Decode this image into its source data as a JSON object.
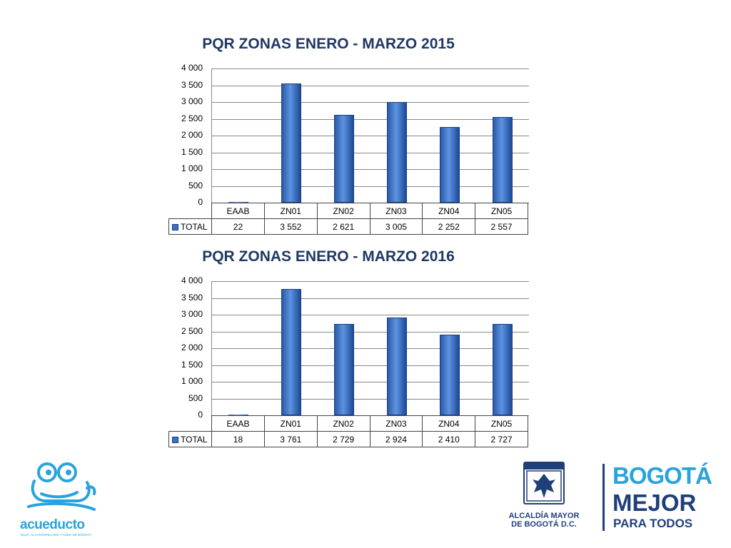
{
  "colors": {
    "bar": "#3a70c8",
    "title": "#1f3864",
    "logo_blue": "#29a3dc",
    "bogota_dark": "#1f3f7a",
    "bogota_light": "#29a3dc"
  },
  "chart_data": [
    {
      "type": "bar",
      "title": "PQR ZONAS  ENERO - MARZO 2015",
      "categories": [
        "EAAB",
        "ZN01",
        "ZN02",
        "ZN03",
        "ZN04",
        "ZN05"
      ],
      "series": [
        {
          "name": "TOTAL",
          "values": [
            22,
            3552,
            2621,
            3005,
            2252,
            2557
          ]
        }
      ],
      "value_labels": [
        "22",
        "3 552",
        "2 621",
        "3 005",
        "2 252",
        "2 557"
      ],
      "yticks": [
        "0",
        "500",
        "1 000",
        "1 500",
        "2 000",
        "2 500",
        "3 000",
        "3 500",
        "4 000"
      ],
      "ylim": [
        0,
        4000
      ],
      "grid": true,
      "legend": "data-table"
    },
    {
      "type": "bar",
      "title": "PQR ZONAS  ENERO - MARZO 2016",
      "categories": [
        "EAAB",
        "ZN01",
        "ZN02",
        "ZN03",
        "ZN04",
        "ZN05"
      ],
      "series": [
        {
          "name": "TOTAL",
          "values": [
            18,
            3761,
            2729,
            2924,
            2410,
            2727
          ]
        }
      ],
      "value_labels": [
        "18",
        "3 761",
        "2 729",
        "2 924",
        "2 410",
        "2 727"
      ],
      "yticks": [
        "0",
        "500",
        "1 000",
        "1 500",
        "2 000",
        "2 500",
        "3 000",
        "3 500",
        "4 000"
      ],
      "ylim": [
        0,
        4000
      ],
      "grid": true,
      "legend": "data-table"
    }
  ],
  "logos": {
    "acueducto": {
      "name": "acueducto",
      "tagline": "AGUA, ALCANTARILLADO Y ASEO DE BOGOTÁ",
      "icon": "frog-icon"
    },
    "alcaldia": {
      "line1": "ALCALDÍA MAYOR",
      "line2": "DE BOGOTÁ D.C.",
      "icon": "coat-of-arms-icon"
    },
    "bogota": {
      "line1": "BOGOTÁ",
      "line2": "MEJOR",
      "line3": "PARA TODOS"
    }
  }
}
